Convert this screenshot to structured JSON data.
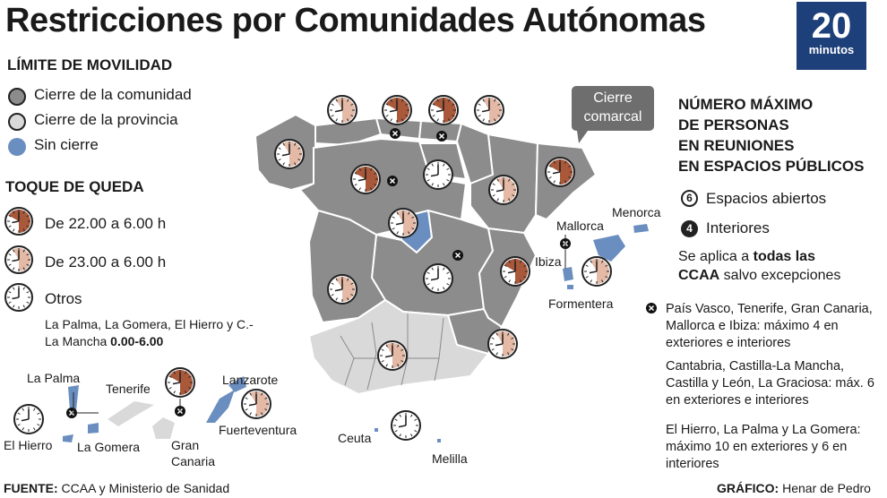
{
  "title": "Restricciones por Comunidades Autónomas",
  "logo": {
    "number": "20",
    "word": "minutos"
  },
  "movilidad": {
    "heading": "LÍMITE DE MOVILIDAD",
    "items": [
      "Cierre de la comunidad",
      "Cierre de la provincia",
      "Sin cierre"
    ]
  },
  "toque": {
    "heading": "TOQUE DE QUEDA",
    "items": [
      "De 22.00 a 6.00 h",
      "De 23.00 a 6.00 h",
      "Otros"
    ],
    "note_plain": "La Palma, La Gomera, El Hierro y C.-La Mancha ",
    "note_bold": "0.00-6.00"
  },
  "callout": "Cierre comarcal",
  "reuniones": {
    "heading": [
      "NÚMERO MÁXIMO",
      "DE PERSONAS",
      "EN REUNIONES",
      "EN ESPACIOS PÚBLICOS"
    ],
    "abiertos_num": "6",
    "abiertos_label": "Espacios abiertos",
    "interiores_num": "4",
    "interiores_label": "Interiores",
    "aplica_1": "Se aplica a ",
    "aplica_bold_1": "todas las",
    "aplica_bold_2": "CCAA",
    "aplica_2": " salvo excepciones",
    "exc1": "País Vasco, Tenerife, Gran Canaria, Mallorca e Ibiza: máximo 4 en exteriores e interiores",
    "exc2": "Cantabria, Castilla-La Mancha, Castilla y León, La Graciosa: máx. 6 en exteriores e interiores",
    "exc3": "El Hierro, La Palma y La Gomera: máximo 10 en exteriores y 6 en interiores"
  },
  "places": {
    "mallorca": "Mallorca",
    "menorca": "Menorca",
    "ibiza": "Ibiza",
    "formentera": "Formentera",
    "ceuta": "Ceuta",
    "melilla": "Melilla",
    "la_palma": "La Palma",
    "tenerife": "Tenerife",
    "lanzarote": "Lanzarote",
    "el_hierro": "El Hierro",
    "la_gomera": "La Gomera",
    "gran_canaria": "Gran Canaria",
    "fuerteventura": "Fuerteventura"
  },
  "footer": {
    "fuente_label": "FUENTE:",
    "fuente": " CCAA y Ministerio de Sanidad",
    "grafico_label": "GRÁFICO:",
    "grafico": " Henar de Pedro"
  },
  "colors": {
    "cierre_comunidad": "#8c8c8c",
    "cierre_provincia": "#d9d9d9",
    "sin_cierre": "#6b8ec0",
    "clock_22": "#a9583a",
    "clock_23": "#e4b9a5",
    "brand": "#1d3f7a"
  }
}
